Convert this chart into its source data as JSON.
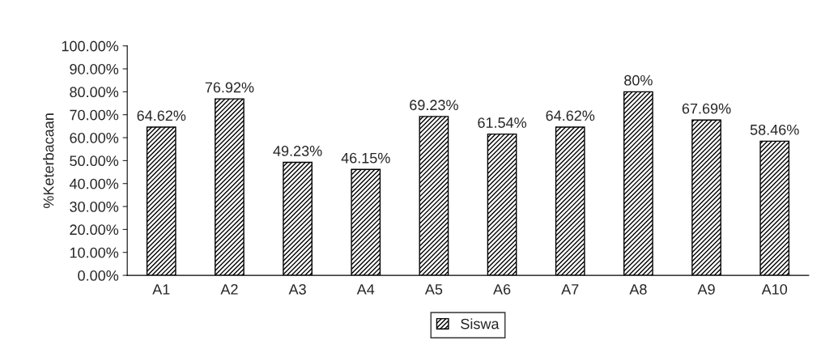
{
  "chart_data": {
    "type": "bar",
    "ylabel": "%Keterbacaan",
    "categories": [
      "A1",
      "A2",
      "A3",
      "A4",
      "A5",
      "A6",
      "A7",
      "A8",
      "A9",
      "A10"
    ],
    "series": [
      {
        "name": "Siswa",
        "color": "#000000",
        "values": [
          64.62,
          76.92,
          49.23,
          46.15,
          69.23,
          61.54,
          64.62,
          80,
          67.69,
          58.46
        ],
        "value_labels": [
          "64.62%",
          "76.92%",
          "49.23%",
          "46.15%",
          "69.23%",
          "61.54%",
          "64.62%",
          "80%",
          "67.69%",
          "58.46%"
        ]
      }
    ],
    "ylim": [
      0,
      100
    ],
    "yticks": [
      {
        "value": 0,
        "label": "0.00%"
      },
      {
        "value": 10,
        "label": "10.00%"
      },
      {
        "value": 20,
        "label": "20.00%"
      },
      {
        "value": 30,
        "label": "30.00%"
      },
      {
        "value": 40,
        "label": "40.00%"
      },
      {
        "value": 50,
        "label": "50.00%"
      },
      {
        "value": 60,
        "label": "60.00%"
      },
      {
        "value": 70,
        "label": "70.00%"
      },
      {
        "value": 80,
        "label": "80.00%"
      },
      {
        "value": 90,
        "label": "90.00%"
      },
      {
        "value": 100,
        "label": "100.00%"
      }
    ],
    "grid": false,
    "legend": "bottom"
  }
}
